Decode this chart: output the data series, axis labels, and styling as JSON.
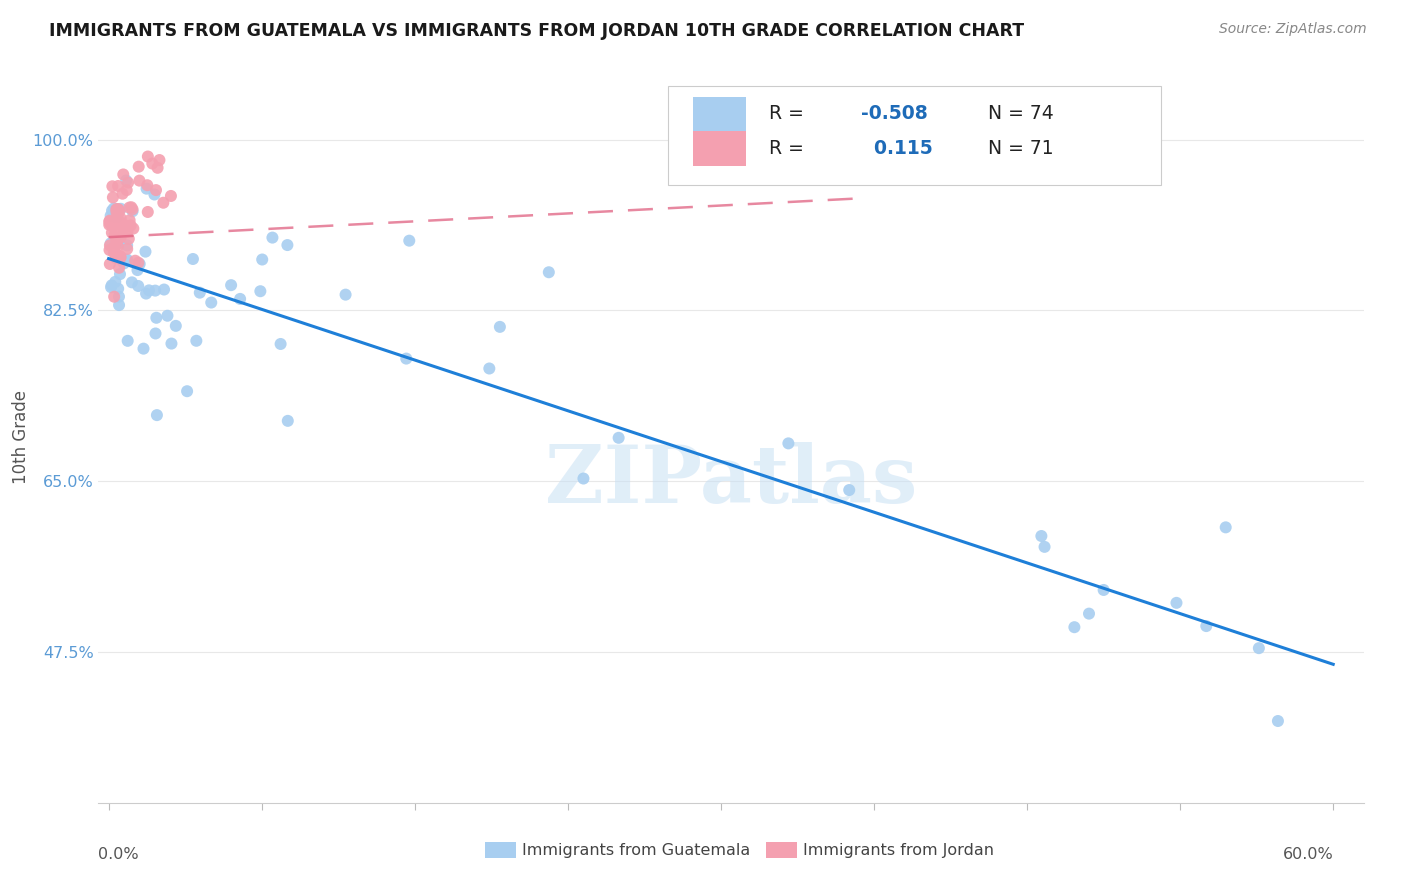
{
  "title": "IMMIGRANTS FROM GUATEMALA VS IMMIGRANTS FROM JORDAN 10TH GRADE CORRELATION CHART",
  "source": "Source: ZipAtlas.com",
  "ylabel": "10th Grade",
  "ytick_labels": [
    "47.5%",
    "65.0%",
    "82.5%",
    "100.0%"
  ],
  "ytick_values": [
    0.475,
    0.65,
    0.825,
    1.0
  ],
  "xlim": [
    0.0,
    0.6
  ],
  "ylim": [
    0.32,
    1.07
  ],
  "color_blue": "#A8CEF0",
  "color_pink": "#F4A0B0",
  "trendline_blue_color": "#1E7FD8",
  "trendline_pink_color": "#E06080",
  "watermark": "ZIPatlas",
  "blue_trend_x": [
    0.0,
    0.6
  ],
  "blue_trend_y": [
    0.878,
    0.462
  ],
  "pink_trend_x": [
    0.0,
    0.37
  ],
  "pink_trend_y": [
    0.9,
    0.94
  ],
  "legend_r1": "-0.508",
  "legend_n1": "74",
  "legend_r2": "0.115",
  "legend_n2": "71",
  "r_color": "#1E6BB8",
  "grid_color": "#E8E8E8",
  "ytick_color": "#5B9BD5",
  "axis_label_color": "#555555",
  "title_color": "#1A1A1A",
  "source_color": "#888888"
}
